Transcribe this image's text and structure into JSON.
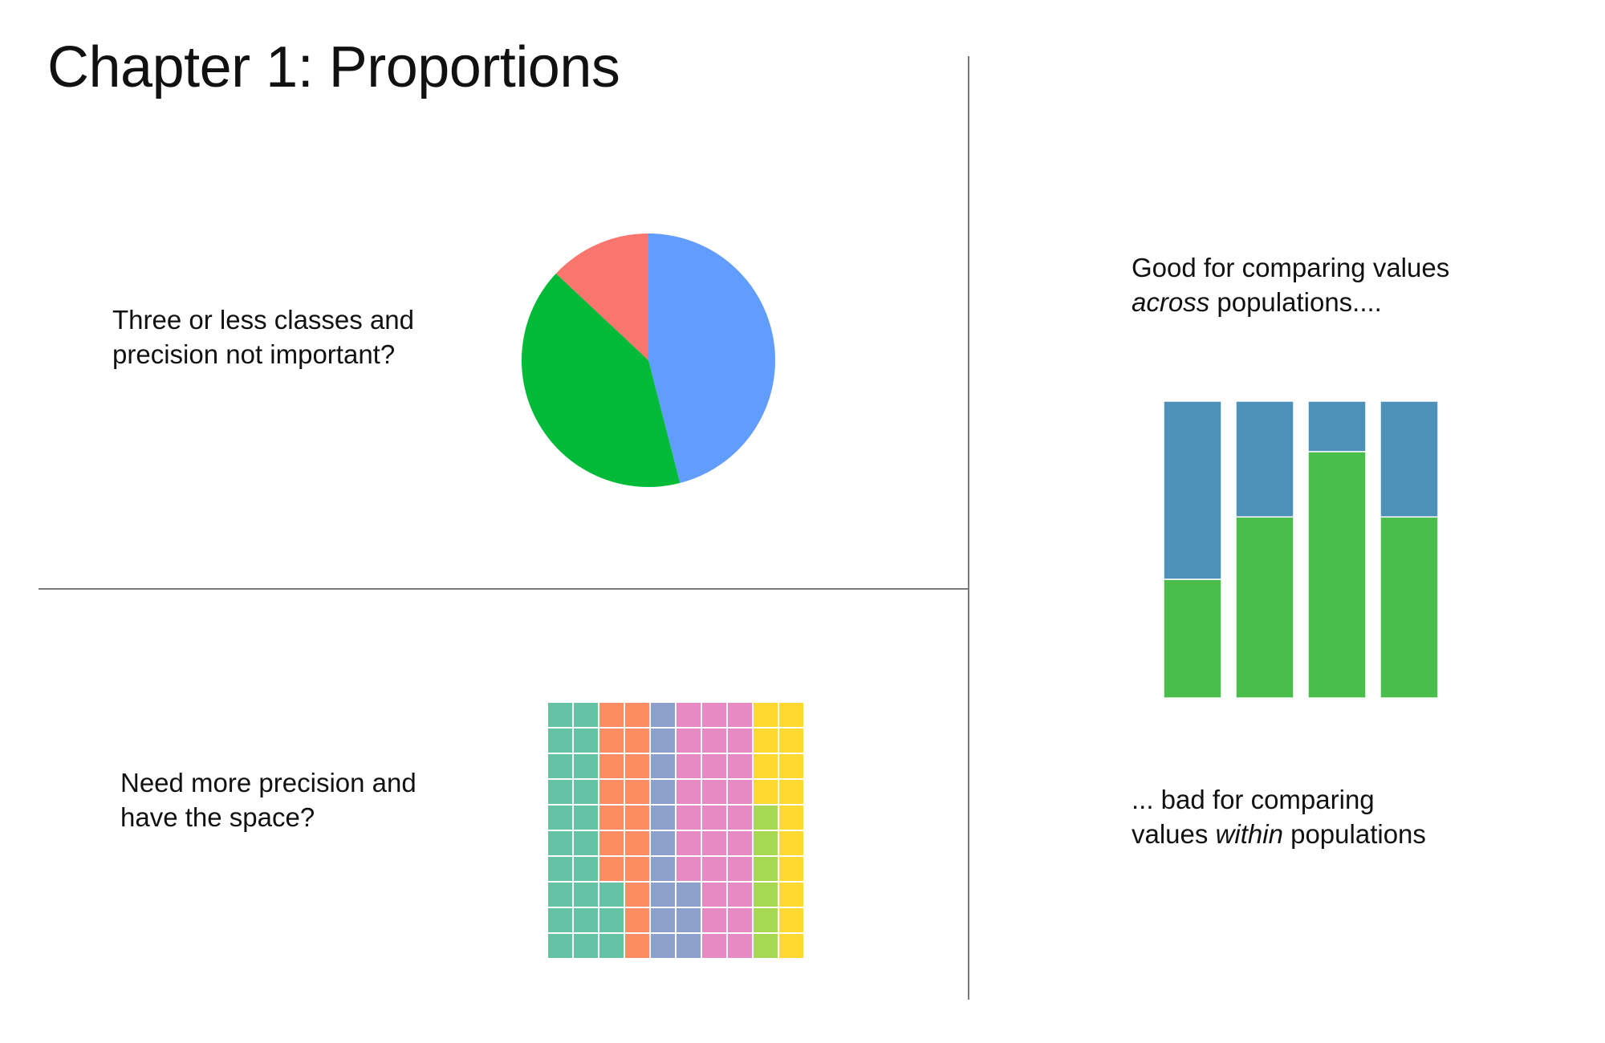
{
  "page": {
    "title": "Chapter 1: Proportions"
  },
  "captions": {
    "pie": {
      "line1": "Three or less classes and",
      "line2": "precision not important?"
    },
    "waffle": {
      "line1": "Need more precision and",
      "line2": "have the space?"
    },
    "across": {
      "line1": "Good for comparing values",
      "line2_italic": "across",
      "line2_rest": " populations...."
    },
    "within": {
      "line1": "... bad for comparing",
      "line2_start": "values ",
      "line2_italic": "within",
      "line2_rest": " populations"
    }
  },
  "chart_data": [
    {
      "type": "pie",
      "slices": [
        {
          "value": 46,
          "color": "#619cff"
        },
        {
          "value": 41,
          "color": "#00ba38"
        },
        {
          "value": 13,
          "color": "#f8766d"
        }
      ]
    },
    {
      "type": "waffle",
      "rows": 10,
      "columns": 10,
      "categories": [
        {
          "value": 23,
          "color": "#66c2a5"
        },
        {
          "value": 17,
          "color": "#fc8d62"
        },
        {
          "value": 13,
          "color": "#8da0cb"
        },
        {
          "value": 27,
          "color": "#e78ac3"
        },
        {
          "value": 6,
          "color": "#a6d854"
        },
        {
          "value": 14,
          "color": "#ffd92f"
        }
      ]
    },
    {
      "type": "bar",
      "stacked": true,
      "ylim": [
        0,
        100
      ],
      "series": [
        {
          "color": "#4bbd4b",
          "values": [
            40,
            61,
            83,
            61
          ]
        },
        {
          "color": "#4d90b8",
          "values": [
            60,
            39,
            17,
            39
          ]
        }
      ]
    }
  ]
}
